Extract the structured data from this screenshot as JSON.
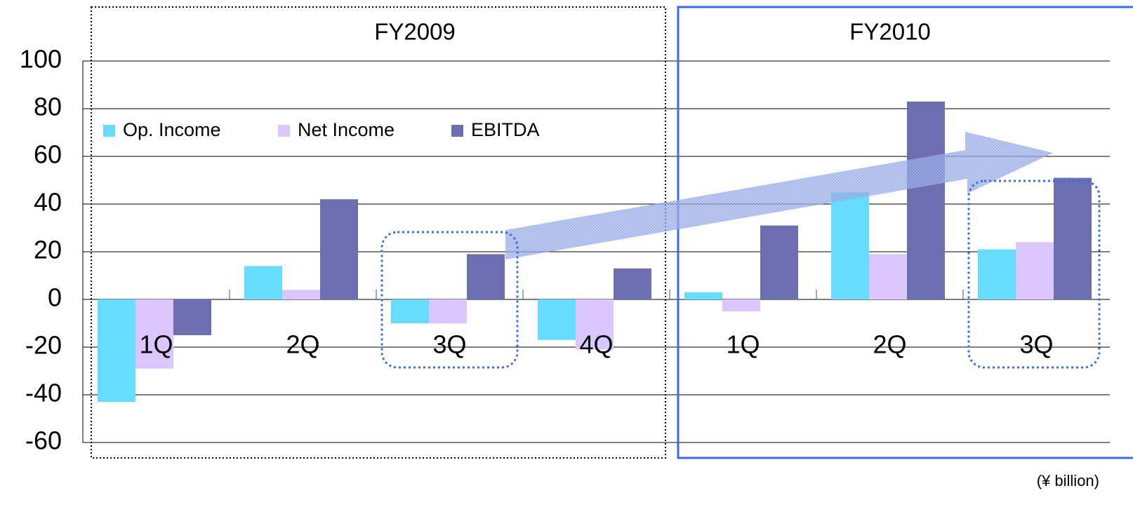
{
  "chart_data": {
    "type": "bar",
    "group_labels": [
      "FY2009",
      "FY2010"
    ],
    "categories": [
      "1Q",
      "2Q",
      "3Q",
      "4Q",
      "1Q",
      "2Q",
      "3Q"
    ],
    "series": [
      {
        "name": "Op. Income",
        "color": "#66dcff",
        "values": [
          -43,
          14,
          -10,
          -17,
          3,
          45,
          21
        ]
      },
      {
        "name": "Net Income",
        "color": "#dcc6ff",
        "values": [
          -29,
          4,
          -10,
          -21,
          -5,
          19,
          24
        ]
      },
      {
        "name": "EBITDA",
        "color": "#6d6db2",
        "values": [
          -15,
          42,
          19,
          13,
          31,
          83,
          51
        ]
      }
    ],
    "ylim": [
      -60,
      100
    ],
    "yticks": [
      -60,
      -40,
      -20,
      0,
      20,
      40,
      60,
      80,
      100
    ],
    "grid": true,
    "legend": "upper left",
    "unit_note": "(¥ billion)"
  }
}
